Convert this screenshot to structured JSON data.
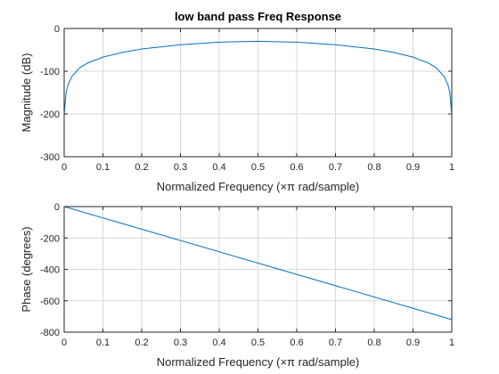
{
  "chart_data": [
    {
      "type": "line",
      "title": "low band pass Freq Response",
      "xlabel": "Normalized Frequency  (×π rad/sample)",
      "ylabel": "Magnitude (dB)",
      "xlim": [
        0,
        1
      ],
      "ylim": [
        -300,
        0
      ],
      "xticks": [
        "0",
        "0.1",
        "0.2",
        "0.3",
        "0.4",
        "0.5",
        "0.6",
        "0.7",
        "0.8",
        "0.9",
        "1"
      ],
      "yticks": [
        "0",
        "-100",
        "-200",
        "-300"
      ],
      "grid": true,
      "series": [
        {
          "color": "#0072BD",
          "x": [
            0,
            0.002,
            0.005,
            0.01,
            0.02,
            0.04,
            0.06,
            0.1,
            0.15,
            0.2,
            0.3,
            0.4,
            0.5,
            0.6,
            0.7,
            0.8,
            0.85,
            0.9,
            0.94,
            0.96,
            0.98,
            0.99,
            0.995,
            0.998,
            1
          ],
          "y": [
            -200,
            -180,
            -150,
            -131,
            -112,
            -92,
            -81,
            -67,
            -56,
            -48,
            -38,
            -32,
            -30,
            -32,
            -38,
            -48,
            -56,
            -67,
            -81,
            -92,
            -112,
            -131,
            -150,
            -180,
            -200
          ]
        }
      ]
    },
    {
      "type": "line",
      "title": "",
      "xlabel": "Normalized Frequency  (×π rad/sample)",
      "ylabel": "Phase (degrees)",
      "xlim": [
        0,
        1
      ],
      "ylim": [
        -800,
        0
      ],
      "xticks": [
        "0",
        "0.1",
        "0.2",
        "0.3",
        "0.4",
        "0.5",
        "0.6",
        "0.7",
        "0.8",
        "0.9",
        "1"
      ],
      "yticks": [
        "0",
        "-200",
        "-400",
        "-600",
        "-800"
      ],
      "grid": true,
      "series": [
        {
          "color": "#0072BD",
          "x": [
            0,
            1
          ],
          "y": [
            0,
            -720
          ]
        }
      ]
    }
  ]
}
